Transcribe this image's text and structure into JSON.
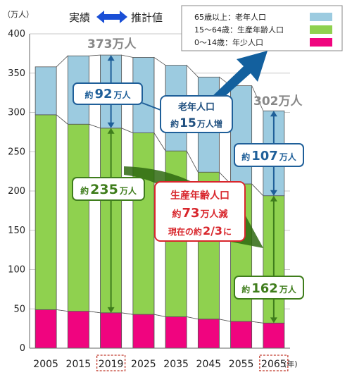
{
  "chart_data": {
    "type": "bar",
    "stacked": true,
    "y_unit": "（万人）",
    "x_unit": "(年)",
    "categories": [
      "2005",
      "2015",
      "2019",
      "2025",
      "2035",
      "2045",
      "2055",
      "2065"
    ],
    "highlighted_categories": [
      "2019",
      "2065"
    ],
    "ylim": [
      0,
      400
    ],
    "yticks": [
      0,
      50,
      100,
      150,
      200,
      250,
      300,
      350,
      400
    ],
    "grid": true,
    "series": [
      {
        "name": "0〜14歳：年少人口",
        "color": "#f0047f",
        "values": [
          49,
          47,
          45,
          43,
          40,
          37,
          34,
          32
        ]
      },
      {
        "name": "15〜64歳：生産年齢人口",
        "color": "#8fd14f",
        "values": [
          248,
          238,
          235,
          231,
          211,
          187,
          175,
          162
        ]
      },
      {
        "name": "65歳以上：老年人口",
        "color": "#9ccbe0",
        "values": [
          61,
          87,
          93,
          96,
          109,
          121,
          125,
          108
        ]
      }
    ],
    "legend_position": "top-right",
    "period_labels": {
      "actual": "実績",
      "projected": "推計値"
    },
    "annotations": {
      "total_2019": "373万人",
      "total_2065": "302万人",
      "elderly_2019": {
        "prefix": "約",
        "num": "92",
        "suffix": "万人"
      },
      "working_2019": {
        "prefix": "約",
        "num": "235",
        "suffix": "万人"
      },
      "elderly_2065": {
        "prefix": "約",
        "num": "107",
        "suffix": "万人"
      },
      "working_2065": {
        "prefix": "約",
        "num": "162",
        "suffix": "万人"
      },
      "elderly_change": {
        "line1": "老年人口",
        "prefix": "約",
        "num": "15",
        "suffix": "万人増"
      },
      "working_change": {
        "line1": "生産年齢人口",
        "prefix": "約",
        "num": "73",
        "suffix": "万人減",
        "line3a": "現在の約",
        "line3b": "2/3",
        "line3c": "に"
      }
    }
  }
}
